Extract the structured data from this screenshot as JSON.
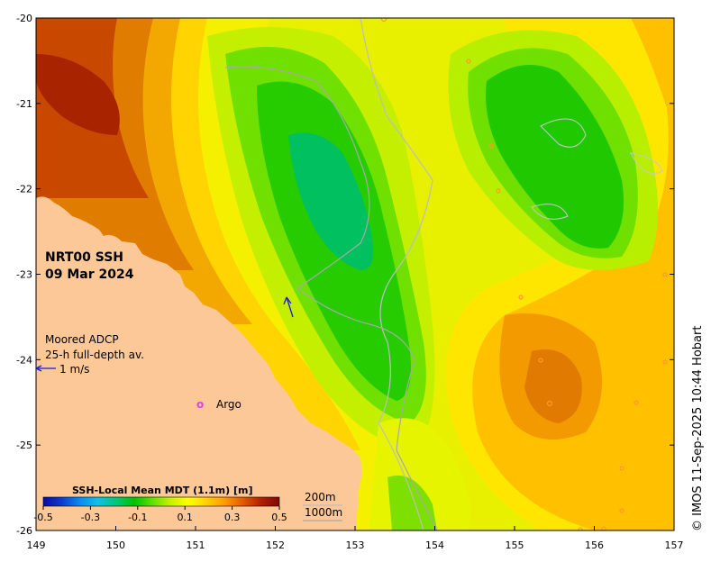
{
  "map": {
    "product_label": "NRT00 SSH",
    "date_label": "09 Mar 2024",
    "adcp_label_line1": "Moored ADCP",
    "adcp_label_line2": "25-h full-depth av.",
    "scale_vector_label": "1 m/s",
    "argo_symbol": "o",
    "argo_label": "Argo",
    "isobath_labels": [
      "200m",
      "1000m"
    ],
    "credit": "© IMOS 11-Sep-2025 10:44 Hobart",
    "longitude_ticks": [
      "149",
      "150",
      "151",
      "152",
      "153",
      "154",
      "155",
      "156",
      "157"
    ],
    "latitude_ticks": [
      "-20",
      "-21",
      "-22",
      "-23",
      "-24",
      "-25",
      "-26"
    ],
    "colors": {
      "land": "#fcc898",
      "argo": "#e23fe8",
      "vector": "#1a1ad8",
      "isobath": "#bdbdbd"
    }
  },
  "colorbar": {
    "title": "SSH-Local Mean MDT (1.1m) [m]",
    "tick_labels": [
      "-0.5",
      "-0.3",
      "-0.1",
      "0.1",
      "0.3",
      "0.5"
    ],
    "min": -0.5,
    "max": 0.5,
    "colors": [
      "#0a0aa0",
      "#0a3ad0",
      "#0a8af0",
      "#10c0e8",
      "#00c878",
      "#00c000",
      "#60e000",
      "#c8f000",
      "#ffff00",
      "#ffd000",
      "#ff9a00",
      "#e05a00",
      "#b02000",
      "#7a0a00"
    ]
  }
}
